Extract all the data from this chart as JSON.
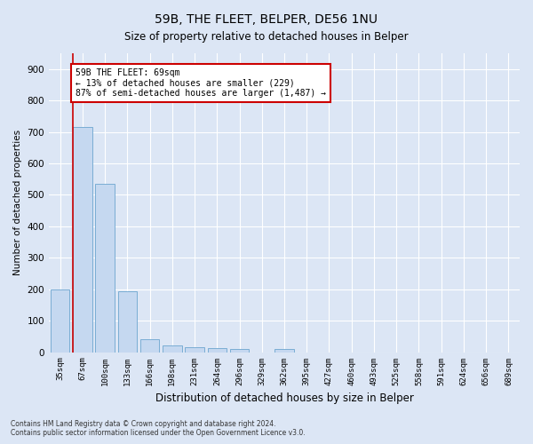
{
  "title1": "59B, THE FLEET, BELPER, DE56 1NU",
  "title2": "Size of property relative to detached houses in Belper",
  "xlabel": "Distribution of detached houses by size in Belper",
  "ylabel": "Number of detached properties",
  "categories": [
    "35sqm",
    "67sqm",
    "100sqm",
    "133sqm",
    "166sqm",
    "198sqm",
    "231sqm",
    "264sqm",
    "296sqm",
    "329sqm",
    "362sqm",
    "395sqm",
    "427sqm",
    "460sqm",
    "493sqm",
    "525sqm",
    "558sqm",
    "591sqm",
    "624sqm",
    "656sqm",
    "689sqm"
  ],
  "values": [
    200,
    715,
    535,
    193,
    42,
    20,
    15,
    13,
    10,
    0,
    9,
    0,
    0,
    0,
    0,
    0,
    0,
    0,
    0,
    0,
    0
  ],
  "bar_color": "#c5d8f0",
  "bar_edge_color": "#7aadd4",
  "annotation_text": "59B THE FLEET: 69sqm\n← 13% of detached houses are smaller (229)\n87% of semi-detached houses are larger (1,487) →",
  "annotation_box_color": "#ffffff",
  "annotation_box_edge_color": "#cc0000",
  "vline_color": "#cc0000",
  "footer1": "Contains HM Land Registry data © Crown copyright and database right 2024.",
  "footer2": "Contains public sector information licensed under the Open Government Licence v3.0.",
  "bg_color": "#dce6f5",
  "plot_bg_color": "#dce6f5",
  "ylim": [
    0,
    950
  ],
  "yticks": [
    0,
    100,
    200,
    300,
    400,
    500,
    600,
    700,
    800,
    900
  ],
  "grid_color": "#ffffff",
  "figsize": [
    6.0,
    5.0
  ],
  "dpi": 100
}
